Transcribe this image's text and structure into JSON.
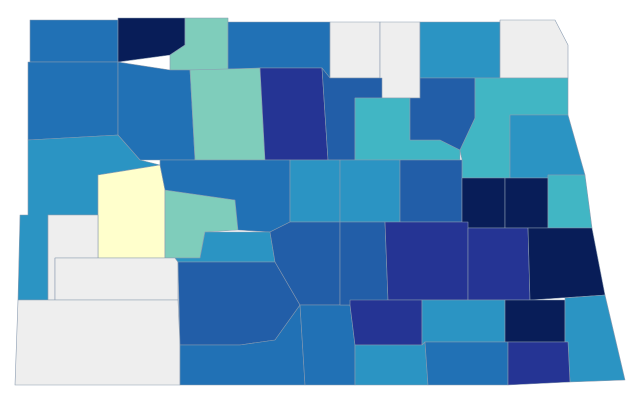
{
  "map": {
    "regions": [
      {
        "color": "#2171b5"
      },
      {
        "color": "#081d58"
      },
      {
        "color": "#7fcdbb"
      },
      {
        "color": "#2171b5"
      },
      {
        "color": "#eeeeee"
      },
      {
        "color": "#eeeeee"
      },
      {
        "color": "#2b94c3"
      },
      {
        "color": "#eeeeee"
      },
      {
        "color": "#2171b5"
      },
      {
        "color": "#2171b5"
      },
      {
        "color": "#7fcdbb"
      },
      {
        "color": "#253494"
      },
      {
        "color": "#225ea8"
      },
      {
        "color": "#41b6c4"
      },
      {
        "color": "#225ea8"
      },
      {
        "color": "#41b6c4"
      },
      {
        "color": "#2b94c3"
      },
      {
        "color": "#2b94c3"
      },
      {
        "color": "#ffffcc"
      },
      {
        "color": "#7fcdbb"
      },
      {
        "color": "#2171b5"
      },
      {
        "color": "#2b94c3"
      },
      {
        "color": "#2b94c3"
      },
      {
        "color": "#225ea8"
      },
      {
        "color": "#081d58"
      },
      {
        "color": "#081d58"
      },
      {
        "color": "#41b6c4"
      },
      {
        "color": "#eeeeee"
      },
      {
        "color": "#eeeeee"
      },
      {
        "color": "#eeeeee"
      },
      {
        "color": "#2b94c3"
      },
      {
        "color": "#225ea8"
      },
      {
        "color": "#2171b5"
      },
      {
        "color": "#225ea8"
      },
      {
        "color": "#2171b5"
      },
      {
        "color": "#225ea8"
      },
      {
        "color": "#253494"
      },
      {
        "color": "#253494"
      },
      {
        "color": "#081d58"
      },
      {
        "color": "#253494"
      },
      {
        "color": "#2b94c3"
      },
      {
        "color": "#081d58"
      },
      {
        "color": "#2b94c3"
      },
      {
        "color": "#2b94c3"
      },
      {
        "color": "#2171b5"
      },
      {
        "color": "#253494"
      }
    ]
  }
}
